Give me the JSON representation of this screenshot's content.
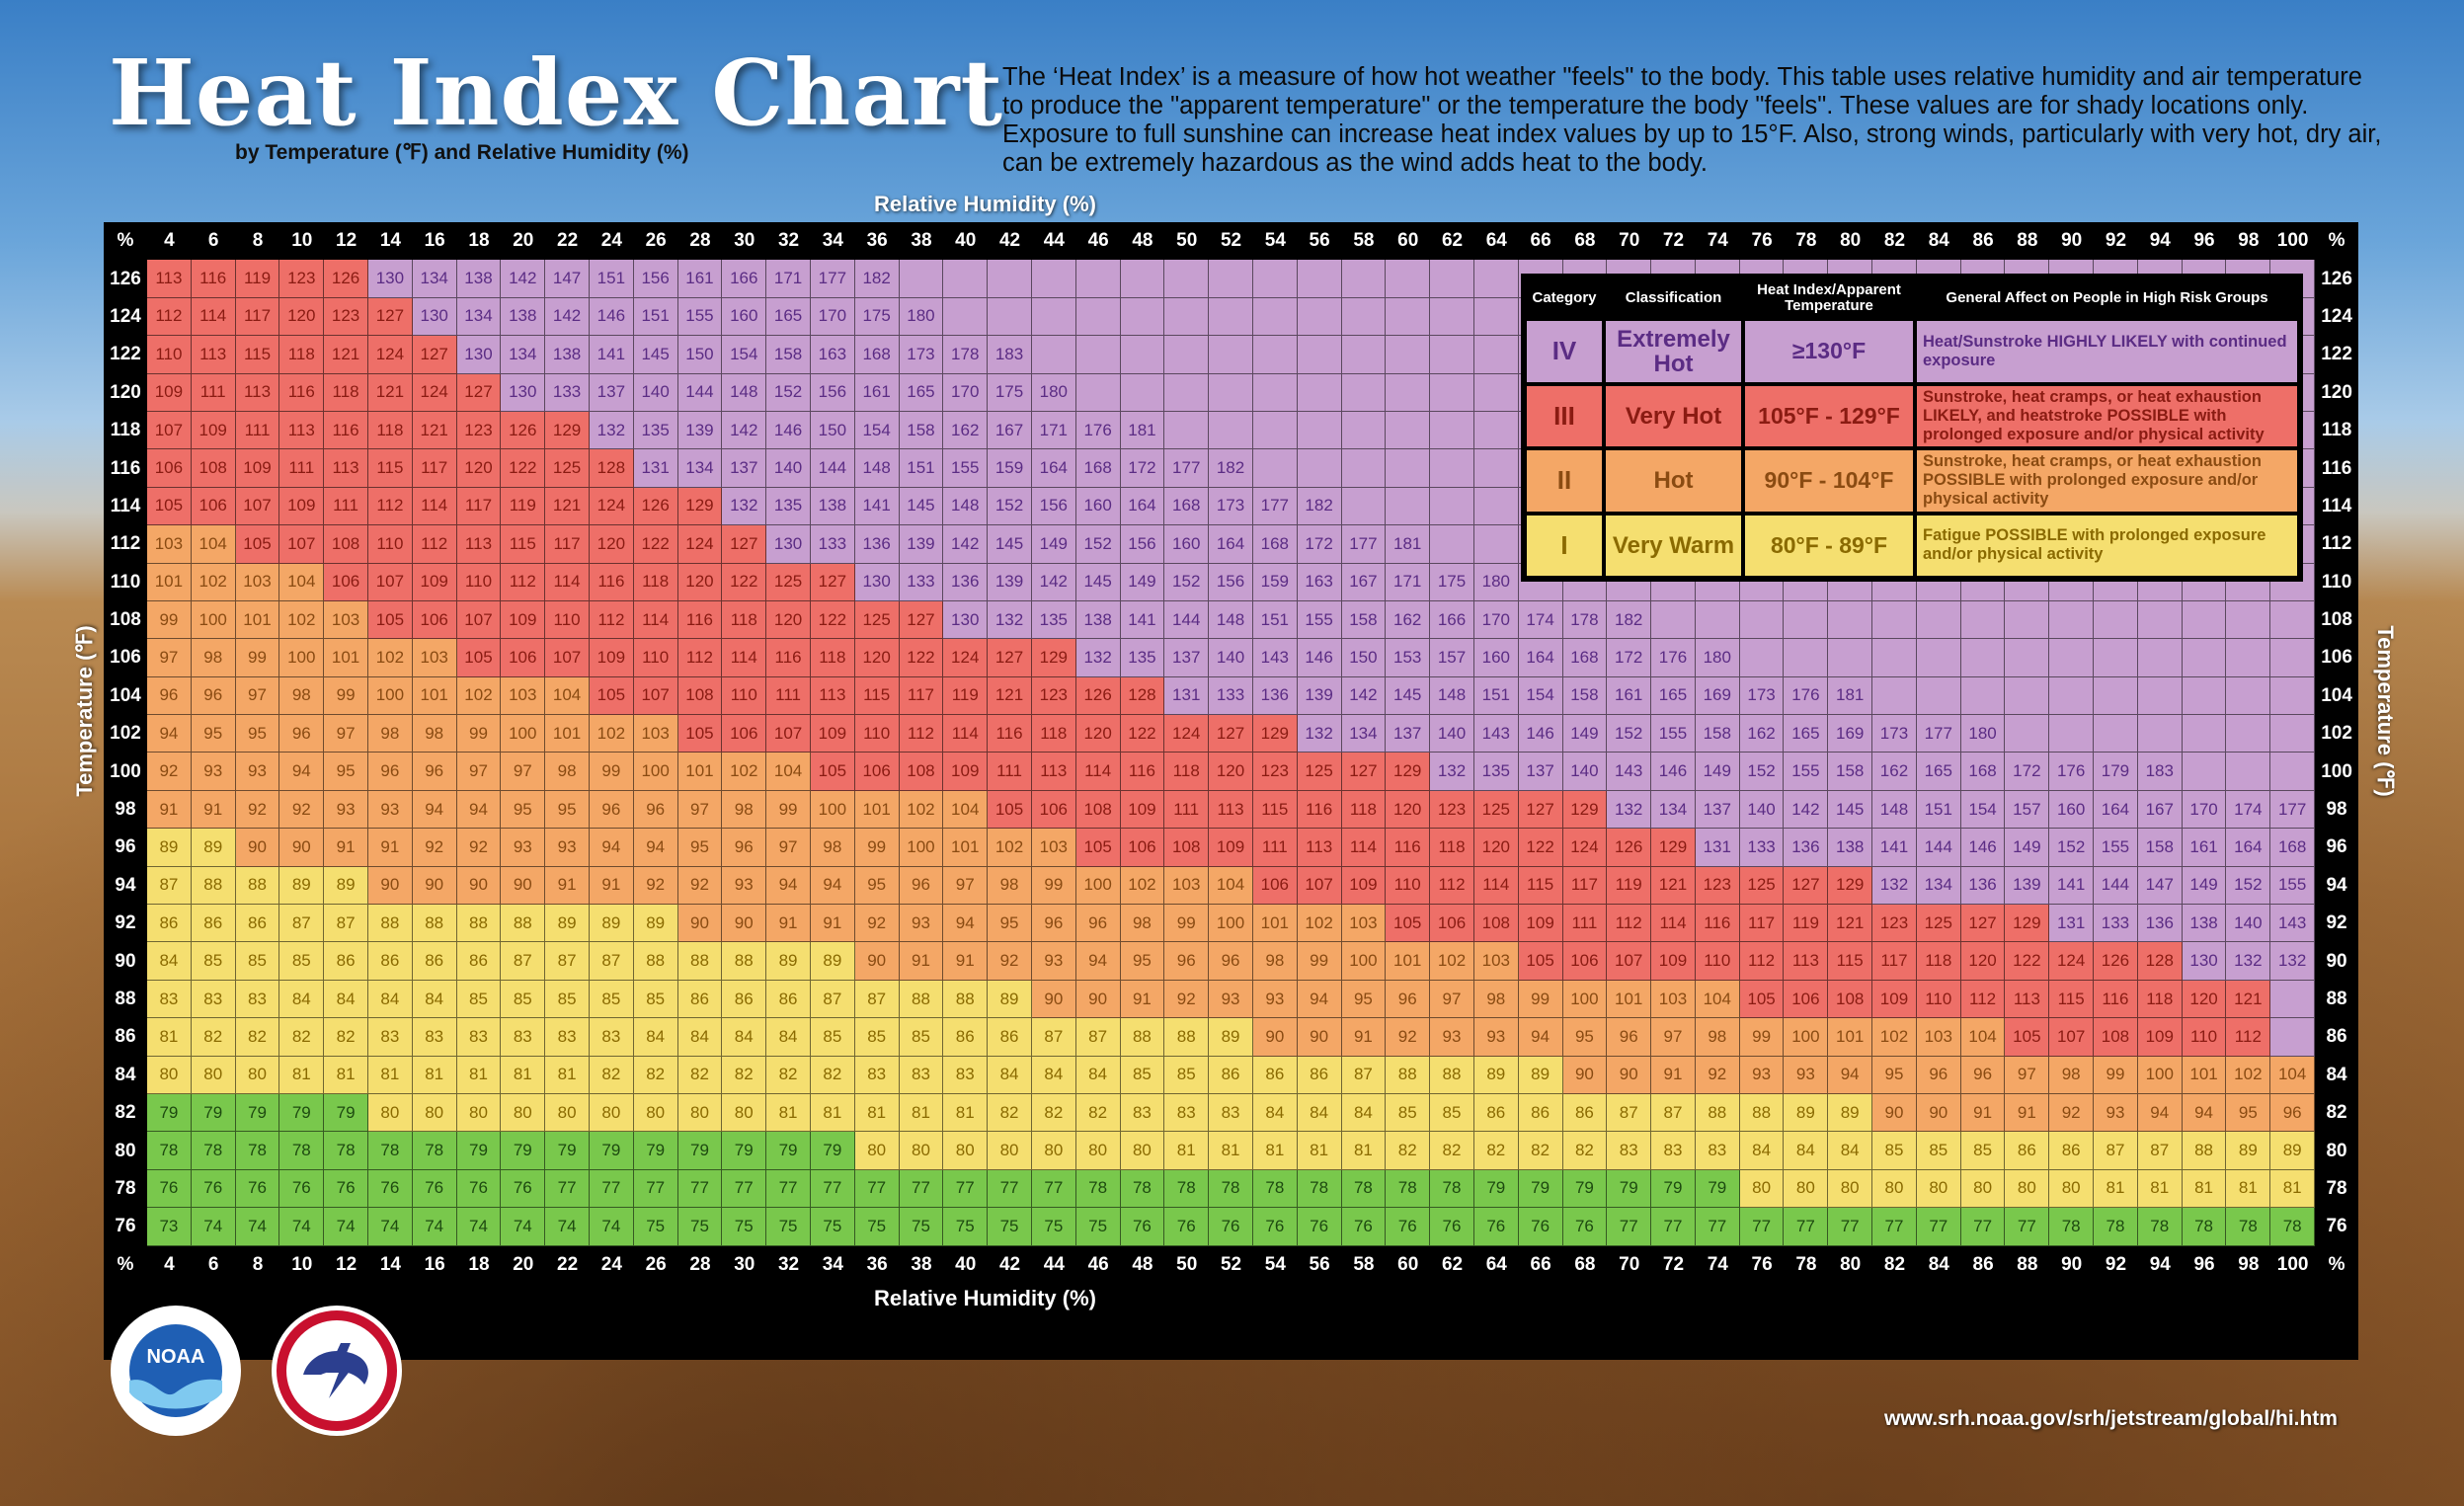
{
  "title": "Heat Index Chart",
  "subtitle": "by Temperature (℉) and Relative Humidity (%)",
  "description": "The ‘Heat Index’ is a measure of how hot weather \"feels\" to the body. This table uses relative humidity and air temperature to produce the \"apparent temperature\" or the temperature the body \"feels\". These values are for shady locations only. Exposure to full sunshine can increase heat index values by up to 15°F. Also, strong winds, particularly with very hot, dry air, can be extremely hazardous as the wind adds heat to the body.",
  "url": "www.srh.noaa.gov/srh/jetstream/global/hi.htm",
  "logos": {
    "noaa": {
      "icon": "noaa-logo",
      "text": "NOAA"
    },
    "nws": {
      "icon": "nws-logo"
    }
  },
  "colors": {
    "extremely_hot": "#c79fd0",
    "very_hot": "#ee6f68",
    "hot": "#f4a766",
    "very_warm": "#f5df70",
    "normal": "#79c84c",
    "header_bg": "#000000",
    "header_text": "#ffffff",
    "extremely_hot_text": "#5b2c84",
    "very_hot_text": "#8a1b12",
    "hot_text": "#8a4b12",
    "very_warm_text": "#8a6a00",
    "normal_text": "#1d4a10"
  },
  "legend": {
    "headers": [
      "Category",
      "Classification",
      "Heat Index/Apparent Temperature",
      "General Affect on People in High Risk Groups"
    ],
    "rows": [
      {
        "category": "IV",
        "classification": "Extremely Hot",
        "range": "≥130°F",
        "effect": "Heat/Sunstroke HIGHLY LIKELY with continued exposure",
        "color_key": "extremely_hot"
      },
      {
        "category": "III",
        "classification": "Very Hot",
        "range": "105°F - 129°F",
        "effect": "Sunstroke, heat cramps, or heat exhaustion LIKELY, and heatstroke POSSIBLE with prolonged exposure and/or physical activity",
        "color_key": "very_hot"
      },
      {
        "category": "II",
        "classification": "Hot",
        "range": "90°F - 104°F",
        "effect": "Sunstroke, heat cramps, or heat exhaustion POSSIBLE with prolonged exposure and/or physical activity",
        "color_key": "hot"
      },
      {
        "category": "I",
        "classification": "Very Warm",
        "range": "80°F - 89°F",
        "effect": "Fatigue POSSIBLE with prolonged exposure and/or physical activity",
        "color_key": "very_warm"
      }
    ]
  },
  "chart_data": {
    "type": "table",
    "xlabel": "Relative Humidity (%)",
    "ylabel": "Temperature (℉)",
    "corner_label": "%",
    "humidity": [
      4,
      6,
      8,
      10,
      12,
      14,
      16,
      18,
      20,
      22,
      24,
      26,
      28,
      30,
      32,
      34,
      36,
      38,
      40,
      42,
      44,
      46,
      48,
      50,
      52,
      54,
      56,
      58,
      60,
      62,
      64,
      66,
      68,
      70,
      72,
      74,
      76,
      78,
      80,
      82,
      84,
      86,
      88,
      90,
      92,
      94,
      96,
      98,
      100
    ],
    "temperature": [
      126,
      124,
      122,
      120,
      118,
      116,
      114,
      112,
      110,
      108,
      106,
      104,
      102,
      100,
      98,
      96,
      94,
      92,
      90,
      88,
      86,
      84,
      82,
      80,
      78,
      76
    ],
    "values": [
      [
        113,
        116,
        119,
        123,
        126,
        130,
        134,
        138,
        142,
        147,
        151,
        156,
        161,
        166,
        171,
        177,
        182
      ],
      [
        112,
        114,
        117,
        120,
        123,
        127,
        130,
        134,
        138,
        142,
        146,
        151,
        155,
        160,
        165,
        170,
        175,
        180
      ],
      [
        110,
        113,
        115,
        118,
        121,
        124,
        127,
        130,
        134,
        138,
        141,
        145,
        150,
        154,
        158,
        163,
        168,
        173,
        178,
        183
      ],
      [
        109,
        111,
        113,
        116,
        118,
        121,
        124,
        127,
        130,
        133,
        137,
        140,
        144,
        148,
        152,
        156,
        161,
        165,
        170,
        175,
        180
      ],
      [
        107,
        109,
        111,
        113,
        116,
        118,
        121,
        123,
        126,
        129,
        132,
        135,
        139,
        142,
        146,
        150,
        154,
        158,
        162,
        167,
        171,
        176,
        181
      ],
      [
        106,
        108,
        109,
        111,
        113,
        115,
        117,
        120,
        122,
        125,
        128,
        131,
        134,
        137,
        140,
        144,
        148,
        151,
        155,
        159,
        164,
        168,
        172,
        177,
        182
      ],
      [
        105,
        106,
        107,
        109,
        111,
        112,
        114,
        117,
        119,
        121,
        124,
        126,
        129,
        132,
        135,
        138,
        141,
        145,
        148,
        152,
        156,
        160,
        164,
        168,
        173,
        177,
        182
      ],
      [
        103,
        104,
        105,
        107,
        108,
        110,
        112,
        113,
        115,
        117,
        120,
        122,
        124,
        127,
        130,
        133,
        136,
        139,
        142,
        145,
        149,
        152,
        156,
        160,
        164,
        168,
        172,
        177,
        181
      ],
      [
        101,
        102,
        103,
        104,
        106,
        107,
        109,
        110,
        112,
        114,
        116,
        118,
        120,
        122,
        125,
        127,
        130,
        133,
        136,
        139,
        142,
        145,
        149,
        152,
        156,
        159,
        163,
        167,
        171,
        175,
        180
      ],
      [
        99,
        100,
        101,
        102,
        103,
        105,
        106,
        107,
        109,
        110,
        112,
        114,
        116,
        118,
        120,
        122,
        125,
        127,
        130,
        132,
        135,
        138,
        141,
        144,
        148,
        151,
        155,
        158,
        162,
        166,
        170,
        174,
        178,
        182
      ],
      [
        97,
        98,
        99,
        100,
        101,
        102,
        103,
        105,
        106,
        107,
        109,
        110,
        112,
        114,
        116,
        118,
        120,
        122,
        124,
        127,
        129,
        132,
        135,
        137,
        140,
        143,
        146,
        150,
        153,
        157,
        160,
        164,
        168,
        172,
        176,
        180
      ],
      [
        96,
        96,
        97,
        98,
        99,
        100,
        101,
        102,
        103,
        104,
        105,
        107,
        108,
        110,
        111,
        113,
        115,
        117,
        119,
        121,
        123,
        126,
        128,
        131,
        133,
        136,
        139,
        142,
        145,
        148,
        151,
        154,
        158,
        161,
        165,
        169,
        173,
        176,
        181
      ],
      [
        94,
        95,
        95,
        96,
        97,
        98,
        98,
        99,
        100,
        101,
        102,
        103,
        105,
        106,
        107,
        109,
        110,
        112,
        114,
        116,
        118,
        120,
        122,
        124,
        127,
        129,
        132,
        134,
        137,
        140,
        143,
        146,
        149,
        152,
        155,
        158,
        162,
        165,
        169,
        173,
        177,
        180
      ],
      [
        92,
        93,
        93,
        94,
        95,
        96,
        96,
        97,
        97,
        98,
        99,
        100,
        101,
        102,
        104,
        105,
        106,
        108,
        109,
        111,
        113,
        114,
        116,
        118,
        120,
        123,
        125,
        127,
        129,
        132,
        135,
        137,
        140,
        143,
        146,
        149,
        152,
        155,
        158,
        162,
        165,
        168,
        172,
        176,
        179,
        183
      ],
      [
        91,
        91,
        92,
        92,
        93,
        93,
        94,
        94,
        95,
        95,
        96,
        96,
        97,
        98,
        99,
        100,
        101,
        102,
        104,
        105,
        106,
        108,
        109,
        111,
        113,
        115,
        116,
        118,
        120,
        123,
        125,
        127,
        129,
        132,
        134,
        137,
        140,
        142,
        145,
        148,
        151,
        154,
        157,
        160,
        164,
        167,
        170,
        174,
        177,
        181
      ],
      [
        89,
        89,
        90,
        90,
        91,
        91,
        92,
        92,
        93,
        93,
        94,
        94,
        95,
        96,
        97,
        98,
        99,
        100,
        101,
        102,
        103,
        105,
        106,
        108,
        109,
        111,
        113,
        114,
        116,
        118,
        120,
        122,
        124,
        126,
        129,
        131,
        133,
        136,
        138,
        141,
        144,
        146,
        149,
        152,
        155,
        158,
        161,
        164,
        168
      ],
      [
        87,
        88,
        88,
        89,
        89,
        90,
        90,
        90,
        90,
        91,
        91,
        92,
        92,
        93,
        94,
        94,
        95,
        96,
        97,
        98,
        99,
        100,
        102,
        103,
        104,
        106,
        107,
        109,
        110,
        112,
        114,
        115,
        117,
        119,
        121,
        123,
        125,
        127,
        129,
        132,
        134,
        136,
        139,
        141,
        144,
        147,
        149,
        152,
        155
      ],
      [
        86,
        86,
        86,
        87,
        87,
        88,
        88,
        88,
        88,
        89,
        89,
        89,
        90,
        90,
        91,
        91,
        92,
        93,
        94,
        95,
        96,
        96,
        98,
        99,
        100,
        101,
        102,
        103,
        105,
        106,
        108,
        109,
        111,
        112,
        114,
        116,
        117,
        119,
        121,
        123,
        125,
        127,
        129,
        131,
        133,
        136,
        138,
        140,
        143
      ],
      [
        84,
        85,
        85,
        85,
        86,
        86,
        86,
        86,
        87,
        87,
        87,
        88,
        88,
        88,
        89,
        89,
        90,
        91,
        91,
        92,
        93,
        94,
        95,
        96,
        96,
        98,
        99,
        100,
        101,
        102,
        103,
        105,
        106,
        107,
        109,
        110,
        112,
        113,
        115,
        117,
        118,
        120,
        122,
        124,
        126,
        128,
        130,
        132,
        132
      ],
      [
        83,
        83,
        83,
        84,
        84,
        84,
        84,
        85,
        85,
        85,
        85,
        85,
        86,
        86,
        86,
        87,
        87,
        88,
        88,
        89,
        90,
        90,
        91,
        92,
        93,
        93,
        94,
        95,
        96,
        97,
        98,
        99,
        100,
        101,
        103,
        104,
        105,
        106,
        108,
        109,
        110,
        112,
        113,
        115,
        116,
        118,
        120,
        121
      ],
      [
        81,
        82,
        82,
        82,
        82,
        83,
        83,
        83,
        83,
        83,
        83,
        84,
        84,
        84,
        84,
        85,
        85,
        85,
        86,
        86,
        87,
        87,
        88,
        88,
        89,
        90,
        90,
        91,
        92,
        93,
        93,
        94,
        95,
        96,
        97,
        98,
        99,
        100,
        101,
        102,
        103,
        104,
        105,
        107,
        108,
        109,
        110,
        112
      ],
      [
        80,
        80,
        80,
        81,
        81,
        81,
        81,
        81,
        81,
        81,
        82,
        82,
        82,
        82,
        82,
        82,
        83,
        83,
        83,
        84,
        84,
        84,
        85,
        85,
        86,
        86,
        86,
        87,
        88,
        88,
        89,
        89,
        90,
        90,
        91,
        92,
        93,
        93,
        94,
        95,
        96,
        96,
        97,
        98,
        99,
        100,
        101,
        102,
        104
      ],
      [
        79,
        79,
        79,
        79,
        79,
        80,
        80,
        80,
        80,
        80,
        80,
        80,
        80,
        80,
        81,
        81,
        81,
        81,
        81,
        82,
        82,
        82,
        83,
        83,
        83,
        84,
        84,
        84,
        85,
        85,
        86,
        86,
        86,
        87,
        87,
        88,
        88,
        89,
        89,
        90,
        90,
        91,
        91,
        92,
        93,
        94,
        94,
        95,
        96
      ],
      [
        78,
        78,
        78,
        78,
        78,
        78,
        78,
        79,
        79,
        79,
        79,
        79,
        79,
        79,
        79,
        79,
        80,
        80,
        80,
        80,
        80,
        80,
        80,
        81,
        81,
        81,
        81,
        81,
        82,
        82,
        82,
        82,
        82,
        83,
        83,
        83,
        84,
        84,
        84,
        85,
        85,
        85,
        86,
        86,
        87,
        87,
        88,
        89,
        89
      ],
      [
        76,
        76,
        76,
        76,
        76,
        76,
        76,
        76,
        76,
        77,
        77,
        77,
        77,
        77,
        77,
        77,
        77,
        77,
        77,
        77,
        77,
        78,
        78,
        78,
        78,
        78,
        78,
        78,
        78,
        78,
        79,
        79,
        79,
        79,
        79,
        79,
        80,
        80,
        80,
        80,
        80,
        80,
        80,
        80,
        81,
        81,
        81,
        81,
        81
      ],
      [
        73,
        74,
        74,
        74,
        74,
        74,
        74,
        74,
        74,
        74,
        74,
        75,
        75,
        75,
        75,
        75,
        75,
        75,
        75,
        75,
        75,
        75,
        76,
        76,
        76,
        76,
        76,
        76,
        76,
        76,
        76,
        76,
        76,
        77,
        77,
        77,
        77,
        77,
        77,
        77,
        77,
        77,
        77,
        78,
        78,
        78,
        78,
        78,
        78
      ]
    ]
  }
}
